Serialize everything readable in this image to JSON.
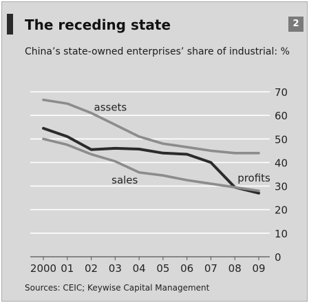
{
  "header": {
    "title": "The receding state",
    "chart_number": "2",
    "subtitle": "China’s state-owned enterprises’ share of industrial: %"
  },
  "footer": {
    "source": "Sources: CEIC; Keywise Capital Management"
  },
  "chart_data": {
    "type": "line",
    "title": "The receding state",
    "xlabel": "",
    "ylabel": "",
    "x": [
      "2000",
      "01",
      "02",
      "03",
      "04",
      "05",
      "06",
      "07",
      "08",
      "09"
    ],
    "ylim": [
      0,
      70
    ],
    "yticks": [
      0,
      10,
      20,
      30,
      40,
      50,
      60,
      70
    ],
    "grid": true,
    "y_axis_side": "right",
    "series": [
      {
        "name": "assets",
        "color": "#8c8c8c",
        "values": [
          66.6,
          65.0,
          61.0,
          56.0,
          51.0,
          48.0,
          46.5,
          45.0,
          44.0,
          44.0
        ]
      },
      {
        "name": "profits",
        "color": "#2b2b2b",
        "values": [
          54.5,
          51.0,
          45.5,
          46.0,
          45.7,
          44.0,
          43.5,
          40.0,
          29.5,
          27.0
        ]
      },
      {
        "name": "sales",
        "color": "#8c8c8c",
        "values": [
          50.0,
          47.5,
          43.5,
          40.5,
          35.8,
          34.5,
          32.5,
          31.0,
          29.5,
          28.0
        ]
      }
    ]
  }
}
